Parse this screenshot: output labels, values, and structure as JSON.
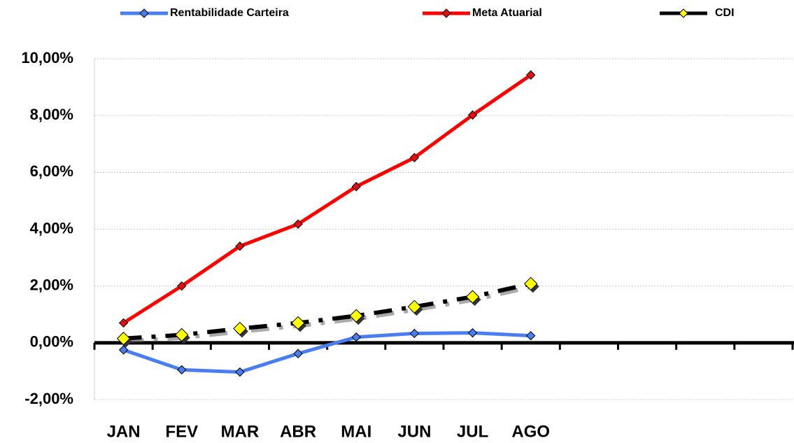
{
  "chart_data": {
    "type": "line",
    "categories": [
      "JAN",
      "FEV",
      "MAR",
      "ABR",
      "MAI",
      "JUN",
      "JUL",
      "AGO",
      null,
      null,
      null,
      null
    ],
    "series": [
      {
        "name": "Rentabilidade Carteira",
        "color": "#4a7ef0",
        "marker_color": "#4a7ef0",
        "values": [
          -0.25,
          -0.95,
          -1.03,
          -0.38,
          0.2,
          0.33,
          0.35,
          0.25,
          null,
          null,
          null,
          null
        ]
      },
      {
        "name": "Meta Atuarial",
        "color": "#ff0000",
        "marker_color": "#e01010",
        "values": [
          0.7,
          2.0,
          3.4,
          4.18,
          5.5,
          6.52,
          8.02,
          9.43,
          null,
          null,
          null,
          null
        ]
      },
      {
        "name": "CDI",
        "color": "#000000",
        "marker_color": "#ffff00",
        "values": [
          0.15,
          0.28,
          0.5,
          0.7,
          0.95,
          1.27,
          1.62,
          2.08,
          null,
          null,
          null,
          null
        ]
      }
    ],
    "ylim": [
      -2,
      10
    ],
    "yticks": [
      {
        "value": -2,
        "label": "-2,00%"
      },
      {
        "value": 0,
        "label": "0,00%"
      },
      {
        "value": 2,
        "label": "2,00%"
      },
      {
        "value": 4,
        "label": "4,00%"
      },
      {
        "value": 6,
        "label": "6,00%"
      },
      {
        "value": 8,
        "label": "8,00%"
      },
      {
        "value": 10,
        "label": "10,00%"
      }
    ],
    "grid": true,
    "legend": "top"
  }
}
